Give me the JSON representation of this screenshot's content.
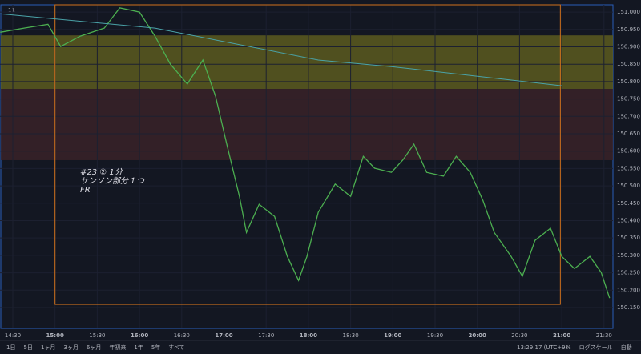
{
  "chart_data": {
    "type": "line",
    "indicator": "11",
    "x": [
      "14:21",
      "14:38",
      "14:55",
      "15:04",
      "15:18",
      "15:35",
      "15:46",
      "16:00",
      "16:11",
      "16:22",
      "16:34",
      "16:45",
      "16:54",
      "17:02",
      "17:11",
      "17:16",
      "17:25",
      "17:36",
      "17:45",
      "17:53",
      "17:59",
      "18:07",
      "18:19",
      "18:30",
      "18:39",
      "18:47",
      "18:59",
      "19:07",
      "19:15",
      "19:24",
      "19:36",
      "19:45",
      "19:55",
      "20:04",
      "20:12",
      "20:24",
      "20:32",
      "20:41",
      "20:52",
      "21:00",
      "21:09",
      "21:20",
      "21:28",
      "21:34"
    ],
    "series": [
      {
        "color": "#4caf50",
        "values": [
          150.942,
          150.954,
          150.965,
          150.901,
          150.931,
          150.954,
          151.012,
          151.0,
          150.931,
          150.85,
          150.793,
          150.862,
          150.758,
          150.62,
          150.47,
          150.366,
          150.447,
          150.412,
          150.297,
          150.228,
          150.297,
          150.424,
          150.505,
          150.47,
          150.585,
          150.551,
          150.539,
          150.574,
          150.62,
          150.539,
          150.528,
          150.585,
          150.539,
          150.458,
          150.366,
          150.297,
          150.24,
          150.343,
          150.378,
          150.297,
          150.262,
          150.297,
          150.251,
          150.177
        ]
      },
      {
        "color": "#4aa3a8",
        "values": [
          150.995,
          null,
          null,
          null,
          null,
          null,
          null,
          null,
          150.954,
          null,
          null,
          null,
          null,
          null,
          null,
          null,
          null,
          null,
          null,
          null,
          null,
          150.862,
          null,
          null,
          null,
          null,
          150.843,
          null,
          null,
          null,
          null,
          null,
          null,
          null,
          null,
          null,
          null,
          null,
          null,
          150.788,
          null,
          null,
          null,
          null
        ]
      }
    ],
    "zones": [
      {
        "from": 150.933,
        "to": 150.779,
        "color": "#5c5a1e"
      },
      {
        "from": 150.779,
        "to": 150.574,
        "color": "#3a2228"
      }
    ],
    "box": {
      "from_time": "15:00",
      "to_time": "20:59",
      "bottom": 150.159,
      "color": "#d0711c"
    },
    "annotation": [
      "#23 ② 1分",
      "サンソン部分１つ",
      "FR"
    ],
    "ylim": [
      150.09,
      151.021
    ],
    "yticks": [
      {
        "value": 150.15,
        "label": "150.150"
      },
      {
        "value": 150.2,
        "label": "150.200"
      },
      {
        "value": 150.25,
        "label": "150.250"
      },
      {
        "value": 150.3,
        "label": "150.300"
      },
      {
        "value": 150.35,
        "label": "150.350"
      },
      {
        "value": 150.4,
        "label": "150.400"
      },
      {
        "value": 150.45,
        "label": "150.450"
      },
      {
        "value": 150.5,
        "label": "150.500"
      },
      {
        "value": 150.55,
        "label": "150.550"
      },
      {
        "value": 150.6,
        "label": "150.600"
      },
      {
        "value": 150.65,
        "label": "150.650"
      },
      {
        "value": 150.7,
        "label": "150.700"
      },
      {
        "value": 150.75,
        "label": "150.750"
      },
      {
        "value": 150.8,
        "label": "150.800"
      },
      {
        "value": 150.85,
        "label": "150.850"
      },
      {
        "value": 150.9,
        "label": "150.900"
      },
      {
        "value": 150.95,
        "label": "150.950"
      },
      {
        "value": 151.0,
        "label": "151.000"
      }
    ],
    "xticks": [
      "14:30",
      "15:00",
      "15:30",
      "16:00",
      "16:30",
      "17:00",
      "17:30",
      "18:00",
      "18:30",
      "19:00",
      "19:30",
      "20:00",
      "20:30",
      "21:00",
      "21:30"
    ],
    "toolbar": [
      "1日",
      "5日",
      "1ヶ月",
      "3ヶ月",
      "6ヶ月",
      "年初来",
      "1年",
      "5年",
      "すべて"
    ],
    "clock": "13:29:17 (UTC+9)",
    "toolbar_right": [
      "%",
      "ログスケール",
      "自動"
    ]
  }
}
